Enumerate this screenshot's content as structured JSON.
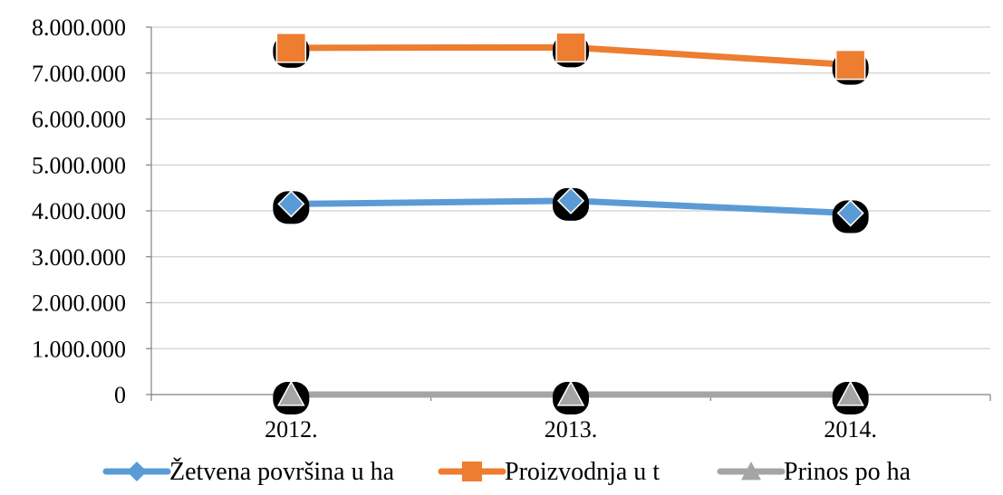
{
  "chart_data": {
    "type": "line",
    "title": "",
    "xlabel": "",
    "ylabel": "",
    "categories": [
      "2012.",
      "2013.",
      "2014."
    ],
    "ylim": [
      0,
      8000000
    ],
    "ytick_values": [
      0,
      1000000,
      2000000,
      3000000,
      4000000,
      5000000,
      6000000,
      7000000,
      8000000
    ],
    "ytick_labels": [
      "0",
      "1.000.000",
      "2.000.000",
      "3.000.000",
      "4.000.000",
      "5.000.000",
      "6.000.000",
      "7.000.000",
      "8.000.000"
    ],
    "grid": true,
    "legend_position": "bottom",
    "series": [
      {
        "name": "Žetvena površina u ha",
        "values": [
          4150000,
          4220000,
          3950000
        ],
        "color": "#5B9BD5",
        "marker": "diamond"
      },
      {
        "name": "Proizvodnja u t",
        "values": [
          7550000,
          7560000,
          7180000
        ],
        "color": "#ED7D31",
        "marker": "square"
      },
      {
        "name": "Prinos po ha",
        "values": [
          1.8,
          1.8,
          1.8
        ],
        "color": "#A5A5A5",
        "marker": "triangle"
      }
    ]
  }
}
